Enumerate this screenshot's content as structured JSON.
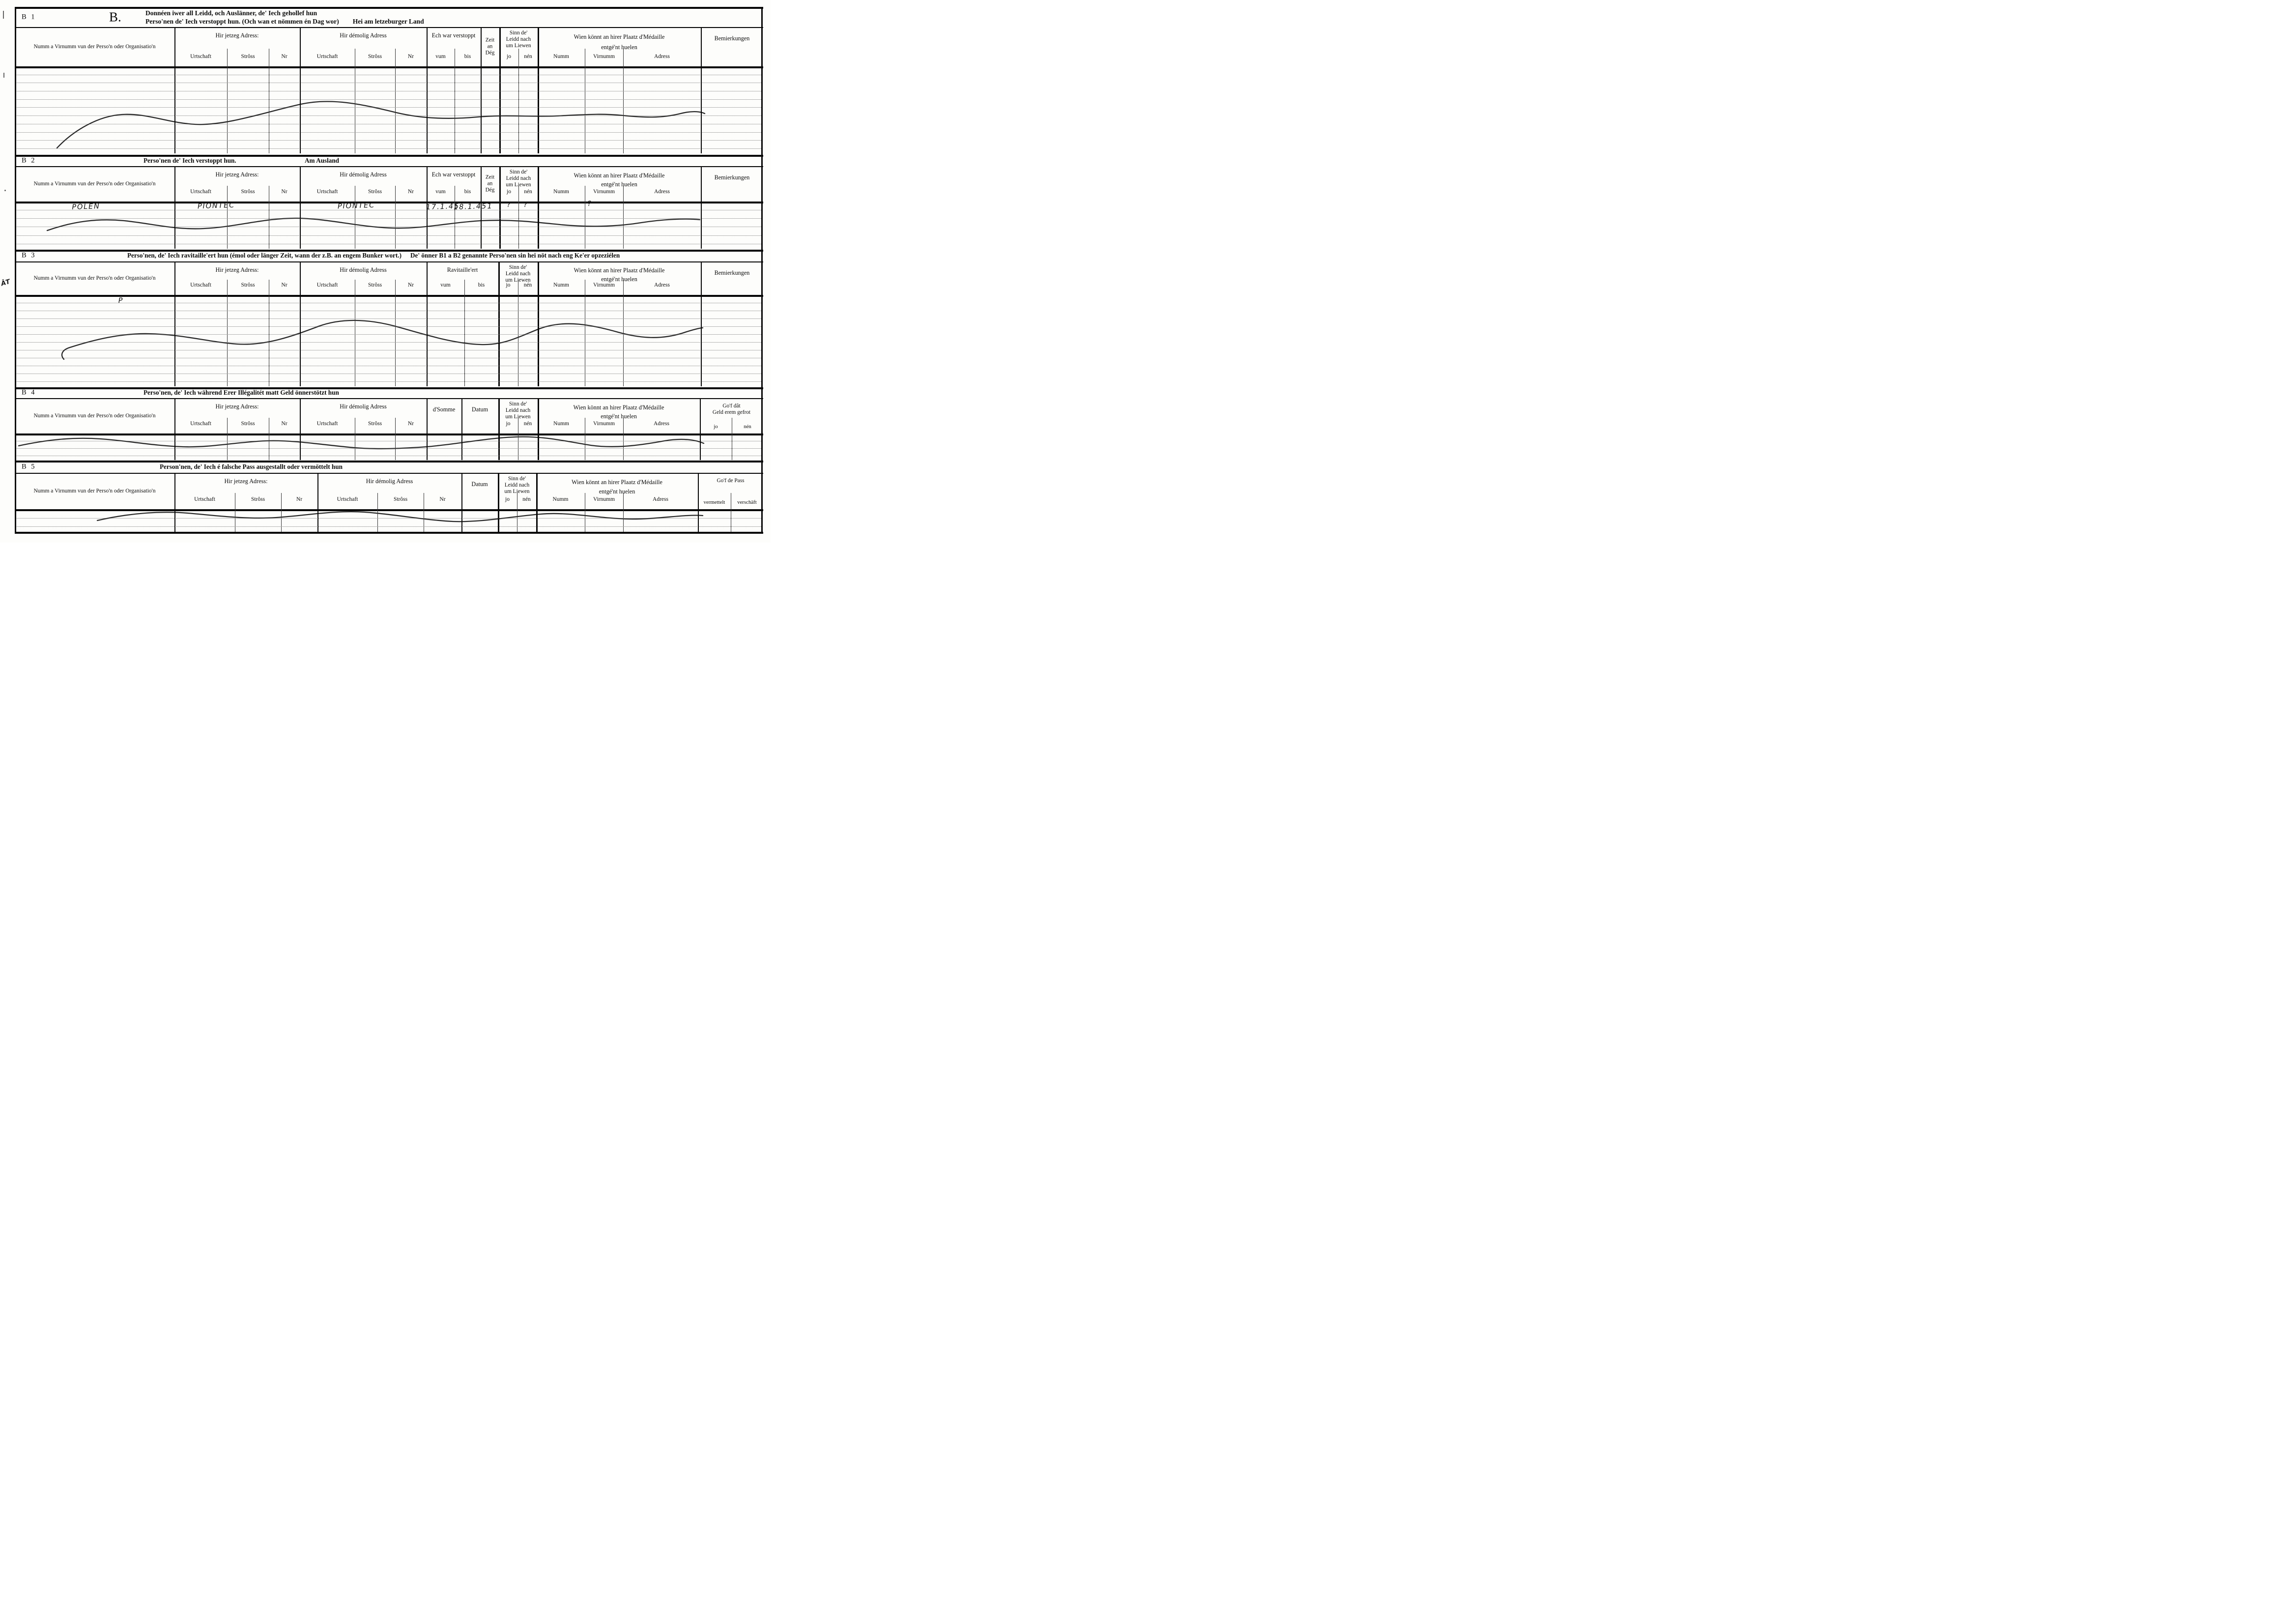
{
  "page": {
    "paper": "#fdfdfb",
    "ink": "#0b0b0b",
    "handwriting_ink": "#141414"
  },
  "header": {
    "form_section_letter": "B.",
    "line1": "Donnéen iwer all Leidd, och Auslänner, de' Iech gehollef hun",
    "line2": "Perso'nen de' Iech verstoppt hun. (Och wan et nömmen én Dag wor)",
    "location_note": "Hei am letzeburger Land"
  },
  "margin_note": "ÂT",
  "sections": [
    {
      "id": "B 1",
      "title": "",
      "title2": "",
      "right": "",
      "columns": [
        {
          "kind": "name",
          "label": "Numm a Virnumm vun der Perso'n oder Organisatio'n"
        },
        {
          "kind": "addr",
          "title": "Hir jetzeg Adress:",
          "subs": [
            "Urtschaft",
            "Strôss",
            "Nr"
          ]
        },
        {
          "kind": "addr",
          "title": "Hir démolig Adress",
          "subs": [
            "Urtschaft",
            "Strôss",
            "Nr"
          ]
        },
        {
          "kind": "period",
          "title": "Ech war verstoppt",
          "subs": [
            "vum",
            "bis"
          ]
        },
        {
          "kind": "zeit",
          "lines": [
            "Zeit",
            "an",
            "Dég"
          ]
        },
        {
          "kind": "alive",
          "lines": [
            "Sinn de'",
            "Leidd nach",
            "um Liewen"
          ],
          "subs": [
            "jo",
            "nén"
          ]
        },
        {
          "kind": "medal",
          "lines": [
            "Wien könnt an hirer Plaatz d'Médaille",
            "entgé'nt huelen"
          ],
          "subs": [
            "Numm",
            "Virnumm",
            "Adress"
          ]
        },
        {
          "kind": "label",
          "label": "Bemierkungen"
        }
      ],
      "entries": []
    },
    {
      "id": "B 2",
      "title": "Perso'nen de' Iech verstoppt hun.",
      "title2": "",
      "right": "Am Ausland",
      "columns": [
        {
          "kind": "name",
          "label": "Numm a Virnumm vun der Perso'n oder Organisatio'n"
        },
        {
          "kind": "addr",
          "title": "Hir jetzeg Adress:",
          "subs": [
            "Urtschaft",
            "Strôss",
            "Nr"
          ]
        },
        {
          "kind": "addr",
          "title": "Hir démolig Adress",
          "subs": [
            "Urtschaft",
            "Strôss",
            "Nr"
          ]
        },
        {
          "kind": "period",
          "title": "Ech war verstoppt",
          "subs": [
            "vum",
            "bis"
          ]
        },
        {
          "kind": "zeit",
          "lines": [
            "Zeit",
            "an",
            "Dég"
          ]
        },
        {
          "kind": "alive",
          "lines": [
            "Sinn de'",
            "Leidd nach",
            "um Liewen"
          ],
          "subs": [
            "jo",
            "nén"
          ]
        },
        {
          "kind": "medal",
          "lines": [
            "Wien könnt an hirer Plaatz d'Médaille",
            "entgé'nt huelen"
          ],
          "subs": [
            "Numm",
            "Virnumm",
            "Adress"
          ]
        },
        {
          "kind": "label",
          "label": "Bemierkungen"
        }
      ],
      "entries": [
        {
          "field": "name",
          "text": "POLEN"
        },
        {
          "field": "hir-jetzeg-adress",
          "text": "PIONTEC"
        },
        {
          "field": "hir-demolig-adress",
          "text": "PIONTEC"
        },
        {
          "field": "verstoppt-vum",
          "text": "17.1.45"
        },
        {
          "field": "verstoppt-bis",
          "text": "18.1.45"
        },
        {
          "field": "zeit-an-deg",
          "text": "1"
        },
        {
          "field": "liewen-jo",
          "text": "?"
        },
        {
          "field": "liewen-nen",
          "text": "?"
        },
        {
          "field": "medaille-virnumm",
          "text": "?"
        }
      ]
    },
    {
      "id": "B 3",
      "title": "Perso'nen, de' Iech ravitaille'ert hun (émol oder länger Zeit, wann der z.B. an engem Bunker wort.)",
      "title2": "De' önner B1 a B2 genannte Perso'nen sin hei nöt nach eng Ke'er opzeziélen",
      "right": "",
      "columns": [
        {
          "kind": "name",
          "label": "Numm a Virnumm vun der Perso'n oder Organisatio'n"
        },
        {
          "kind": "addr",
          "title": "Hir jetzeg Adress:",
          "subs": [
            "Urtschaft",
            "Strôss",
            "Nr"
          ]
        },
        {
          "kind": "addr",
          "title": "Hir démolig Adress",
          "subs": [
            "Urtschaft",
            "Strôss",
            "Nr"
          ]
        },
        {
          "kind": "period",
          "title": "Ravitaille'ert",
          "subs": [
            "vum",
            "bis"
          ]
        },
        {
          "kind": "alive",
          "lines": [
            "Sinn de'",
            "Leidd nach",
            "um Liewen"
          ],
          "subs": [
            "jo",
            "nén"
          ]
        },
        {
          "kind": "medal",
          "lines": [
            "Wien könnt an hirer Plaatz d'Médaille",
            "entgé'nt huelen"
          ],
          "subs": [
            "Numm",
            "Virnumm",
            "Adress"
          ]
        },
        {
          "kind": "label",
          "label": "Bemierkungen"
        }
      ],
      "entries": [
        {
          "field": "name",
          "text": "P"
        }
      ]
    },
    {
      "id": "B 4",
      "title": "Perso'nen, de' Iech während Erer Illégalitét matt Geld önnerstötzt hun",
      "title2": "",
      "right": "",
      "columns": [
        {
          "kind": "name",
          "label": "Numm a Virnumm vun der Perso'n oder Organisatio'n"
        },
        {
          "kind": "addr",
          "title": "Hir jetzeg Adress:",
          "subs": [
            "Urtschaft",
            "Strôss",
            "Nr"
          ]
        },
        {
          "kind": "addr",
          "title": "Hir démolig Adress",
          "subs": [
            "Urtschaft",
            "Strôss",
            "Nr"
          ]
        },
        {
          "kind": "label",
          "label": "d'Somme"
        },
        {
          "kind": "label",
          "label": "Datum"
        },
        {
          "kind": "alive",
          "lines": [
            "Sinn de'",
            "Leidd nach",
            "um Liewen"
          ],
          "subs": [
            "jo",
            "nén"
          ]
        },
        {
          "kind": "medal",
          "lines": [
            "Wien könnt an hirer Plaatz d'Médaille",
            "entgé'nt huelen"
          ],
          "subs": [
            "Numm",
            "Virnumm",
            "Adress"
          ]
        },
        {
          "kind": "yn2",
          "lines": [
            "Go'f dât",
            "Geld erem gefrot"
          ],
          "subs": [
            "jo",
            "nén"
          ]
        }
      ],
      "entries": []
    },
    {
      "id": "B 5",
      "title": "Person'nen, de' Iech é falsche Pass ausgestallt oder vermöttelt hun",
      "title2": "",
      "right": "",
      "columns": [
        {
          "kind": "name",
          "label": "Numm a Virnumm vun der Perso'n oder Organisatio'n"
        },
        {
          "kind": "addr",
          "title": "Hir jetzeg Adress:",
          "subs": [
            "Urtschaft",
            "Strôss",
            "Nr"
          ]
        },
        {
          "kind": "addr",
          "title": "Hir démolig Adress",
          "subs": [
            "Urtschaft",
            "Strôss",
            "Nr"
          ]
        },
        {
          "kind": "label",
          "label": "Datum"
        },
        {
          "kind": "alive",
          "lines": [
            "Sinn de'",
            "Leidd nach",
            "um Liewen"
          ],
          "subs": [
            "jo",
            "nén"
          ]
        },
        {
          "kind": "medal",
          "lines": [
            "Wien könnt an hirer Plaatz d'Médaille",
            "entgé'nt huelen"
          ],
          "subs": [
            "Numm",
            "Virnumm",
            "Adress"
          ]
        },
        {
          "kind": "yn2",
          "lines": [
            "Go'f de Pass"
          ],
          "subs": [
            "vermettelt",
            "verschäft"
          ]
        }
      ],
      "entries": []
    }
  ]
}
